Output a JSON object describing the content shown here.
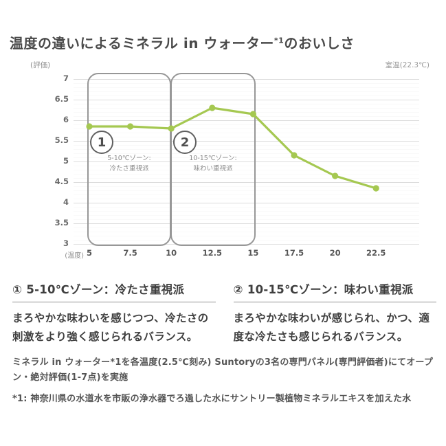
{
  "header": {
    "title_main": "温度の違いによるミネラル in ウォーター",
    "title_sup": "*1",
    "title_tail": "のおいしさ"
  },
  "chart": {
    "y_axis_unit": "(評価)",
    "room_temp_note": "室温(22.3℃)",
    "x_axis_unit": "(温度)",
    "zone1": {
      "number": "1",
      "label_line1": "5-10℃ゾーン:",
      "label_line2": "冷たさ重視派"
    },
    "zone2": {
      "number": "2",
      "label_line1": "10-15℃ゾーン:",
      "label_line2": "味わい重視派"
    }
  },
  "chart_data": {
    "type": "line",
    "title": "温度の違いによるミネラル in ウォーター*1のおいしさ",
    "xlabel": "温度(℃)",
    "ylabel": "評価",
    "x": [
      5,
      7.5,
      10,
      12.5,
      15,
      17.5,
      20,
      22.5
    ],
    "values": [
      5.85,
      5.85,
      5.8,
      6.3,
      6.15,
      5.15,
      4.65,
      4.35
    ],
    "xlim": [
      5,
      22.5
    ],
    "ylim": [
      3,
      7
    ],
    "x_ticks": [
      5,
      7.5,
      10,
      12.5,
      15,
      17.5,
      20,
      22.5
    ],
    "y_ticks": [
      7,
      6.5,
      6,
      5.5,
      5,
      4.5,
      4,
      3.5,
      3
    ],
    "line_color": "#a5c851",
    "grid": true,
    "legend": false,
    "annotations": [
      {
        "zone": 1,
        "x_range": [
          5,
          10
        ],
        "label": "5-10℃ゾーン: 冷たさ重視派"
      },
      {
        "zone": 2,
        "x_range": [
          10,
          15
        ],
        "label": "10-15℃ゾーン: 味わい重視派"
      }
    ],
    "note": "室温(22.3℃)"
  },
  "sections": [
    {
      "heading": "① 5-10℃ゾーン：冷たさ重視派",
      "body": "まろやかな味わいを感じつつ、冷たさの刺激をより強く感じられるバランス。"
    },
    {
      "heading": "② 10-15℃ゾーン：味わい重視派",
      "body": "まろやかな味わいが感じられ、かつ、適度な冷たさも感じられるバランス。"
    }
  ],
  "footnotes": {
    "method": "ミネラル in ウォーター*1を各温度(2.5℃刻み) Suntoryの3名の専門パネル(専門評価者)にてオープン・絶対評価(1-7点)を実施",
    "source": "*1: 神奈川県の水道水を市販の浄水器でろ過した水にサントリー製植物ミネラルエキスを加えた水"
  }
}
